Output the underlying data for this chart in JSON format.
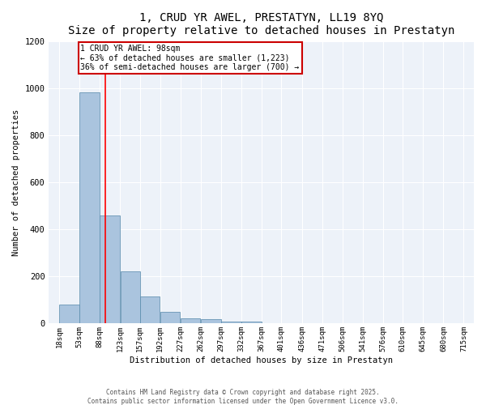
{
  "title": "1, CRUD YR AWEL, PRESTATYN, LL19 8YQ",
  "subtitle": "Size of property relative to detached houses in Prestatyn",
  "xlabel": "Distribution of detached houses by size in Prestatyn",
  "ylabel": "Number of detached properties",
  "bar_color": "#aac4de",
  "bar_edge_color": "#5588aa",
  "background_color": "#edf2f9",
  "grid_color": "#ffffff",
  "bins": [
    18,
    53,
    88,
    123,
    157,
    192,
    227,
    262,
    297,
    332,
    367,
    401,
    436,
    471,
    506,
    541,
    576,
    610,
    645,
    680,
    715
  ],
  "bin_labels": [
    "18sqm",
    "53sqm",
    "88sqm",
    "123sqm",
    "157sqm",
    "192sqm",
    "227sqm",
    "262sqm",
    "297sqm",
    "332sqm",
    "367sqm",
    "401sqm",
    "436sqm",
    "471sqm",
    "506sqm",
    "541sqm",
    "576sqm",
    "610sqm",
    "645sqm",
    "680sqm",
    "715sqm"
  ],
  "bar_heights": [
    80,
    980,
    460,
    220,
    115,
    50,
    22,
    20,
    10,
    10,
    0,
    0,
    0,
    0,
    0,
    0,
    0,
    0,
    0,
    0
  ],
  "red_line_x": 98,
  "ylim": [
    0,
    1200
  ],
  "yticks": [
    0,
    200,
    400,
    600,
    800,
    1000,
    1200
  ],
  "annotation_text": "1 CRUD YR AWEL: 98sqm\n← 63% of detached houses are smaller (1,223)\n36% of semi-detached houses are larger (700) →",
  "annotation_box_color": "#ffffff",
  "annotation_border_color": "#cc0000",
  "footnote1": "Contains HM Land Registry data © Crown copyright and database right 2025.",
  "footnote2": "Contains public sector information licensed under the Open Government Licence v3.0."
}
